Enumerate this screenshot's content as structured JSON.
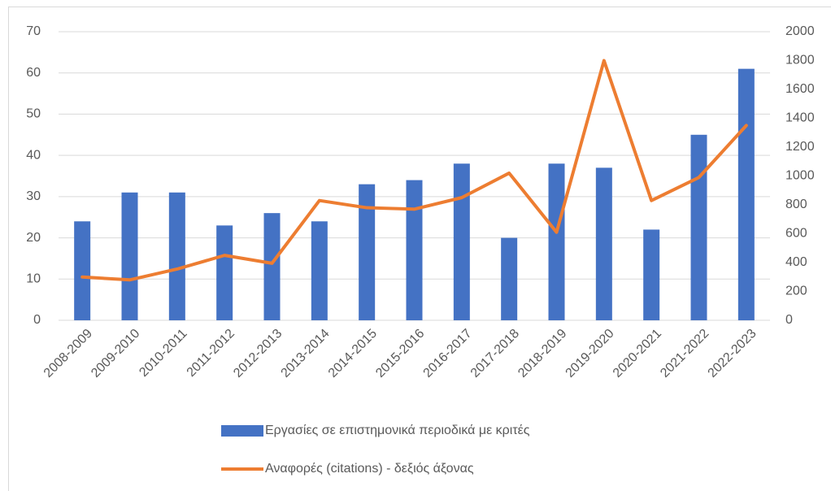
{
  "chart_data": {
    "type": "bar-line",
    "categories": [
      "2008-2009",
      "2009-2010",
      "2010-2011",
      "2011-2012",
      "2012-2013",
      "2013-2014",
      "2014-2015",
      "2015-2016",
      "2016-2017",
      "2017-2018",
      "2018-2019",
      "2019-2020",
      "2020-2021",
      "2021-2022",
      "2022-2023"
    ],
    "series": [
      {
        "name": "Εργασίες σε επιστημονικά περιοδικά με κριτές",
        "type": "bar",
        "color": "#4472c4",
        "values": [
          24,
          31,
          31,
          23,
          26,
          24,
          33,
          34,
          38,
          20,
          38,
          37,
          22,
          45,
          61
        ]
      },
      {
        "name": "Αναφορές (citations) - δεξιός άξονας",
        "type": "line",
        "axis": "y2",
        "color": "#ed7d31",
        "values": [
          300,
          280,
          355,
          450,
          395,
          830,
          780,
          770,
          850,
          1020,
          610,
          1800,
          830,
          990,
          1350
        ]
      }
    ],
    "ylim": [
      0,
      70
    ],
    "yticks": [
      0,
      10,
      20,
      30,
      40,
      50,
      60,
      70
    ],
    "y2lim": [
      0,
      2000
    ],
    "y2ticks": [
      0,
      200,
      400,
      600,
      800,
      1000,
      1200,
      1400,
      1600,
      1800,
      2000
    ],
    "grid": true,
    "legend": "bottom"
  }
}
